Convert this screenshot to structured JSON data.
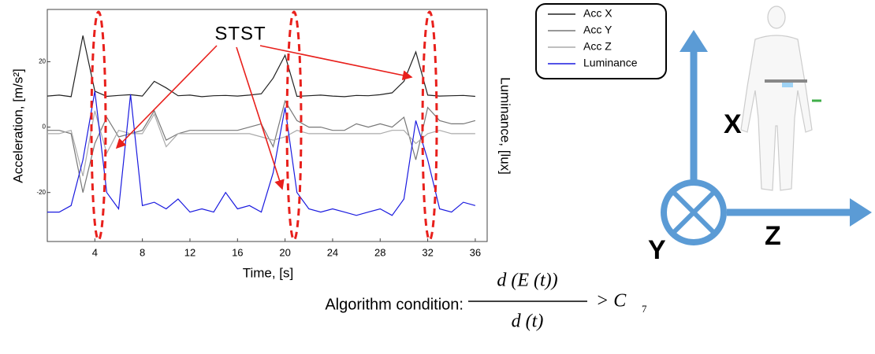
{
  "chart_data": {
    "type": "line",
    "xlabel": "Time, [s]",
    "ylabel": "Acceleration, [m/s²]",
    "y2label": "Luminance, [lux]",
    "xlim": [
      0,
      37
    ],
    "xticks": [
      4,
      8,
      12,
      16,
      20,
      24,
      28,
      32,
      36
    ],
    "ylim": [
      -35,
      36
    ],
    "yticks": [
      20,
      0,
      -20
    ],
    "x": [
      0,
      1,
      2,
      3,
      4,
      5,
      6,
      7,
      8,
      9,
      10,
      11,
      12,
      13,
      14,
      15,
      16,
      17,
      18,
      19,
      20,
      21,
      22,
      23,
      24,
      25,
      26,
      27,
      28,
      29,
      30,
      31,
      32,
      33,
      34,
      35,
      36
    ],
    "series": [
      {
        "name": "Acc X",
        "color": "#222222",
        "values": [
          9.5,
          9.8,
          9.3,
          28,
          11,
          9.4,
          9.7,
          9.9,
          9.5,
          14,
          12,
          9.6,
          9.8,
          9.3,
          9.6,
          9.7,
          9.5,
          9.8,
          10.2,
          15,
          22,
          9.4,
          9.6,
          9.8,
          9.5,
          9.3,
          9.7,
          9.6,
          9.9,
          10.5,
          14,
          23,
          9.8,
          9.5,
          9.6,
          9.7,
          9.4
        ]
      },
      {
        "name": "Acc Y",
        "color": "#777777",
        "values": [
          -1,
          -1,
          -2,
          -20,
          -5,
          3,
          -3,
          -2,
          -1,
          5,
          -4,
          -2,
          -1,
          -1,
          -1,
          -1,
          -1,
          0,
          1,
          -6,
          8,
          2,
          0,
          0,
          -1,
          -1,
          1,
          0,
          1,
          0,
          3,
          -10,
          6,
          2,
          1,
          1,
          2
        ]
      },
      {
        "name": "Acc Z",
        "color": "#aaaaaa",
        "values": [
          -2,
          -2,
          -1,
          -15,
          5,
          -8,
          -1,
          -2,
          -2,
          4,
          -6,
          -2,
          -2,
          -2,
          -2,
          -2,
          -2,
          -2,
          -3,
          -4,
          -3,
          -1,
          -2,
          -2,
          -2,
          -2,
          -2,
          -2,
          -2,
          -1,
          -1,
          -5,
          -2,
          -1,
          -2,
          -2,
          -2
        ]
      },
      {
        "name": "Luminance",
        "color": "#1a1adf",
        "values": [
          -26,
          -26,
          -24,
          -10,
          11,
          -20,
          -25,
          10,
          -24,
          -23,
          -25,
          -22,
          -26,
          -25,
          -26,
          -20,
          -25,
          -24,
          -26,
          -14,
          6,
          -20,
          -25,
          -26,
          -25,
          -26,
          -27,
          -26,
          -25,
          -27,
          -22,
          2,
          -10,
          -25,
          -26,
          -23,
          -24
        ]
      }
    ],
    "annotation": "STST"
  },
  "diagram": {
    "axes": [
      "X",
      "Y",
      "Z"
    ]
  },
  "formula": {
    "label": "Algorithm condition:",
    "numerator": "d (E (t))",
    "denominator": "d (t)",
    "relation": "> C",
    "subscript": "7"
  }
}
